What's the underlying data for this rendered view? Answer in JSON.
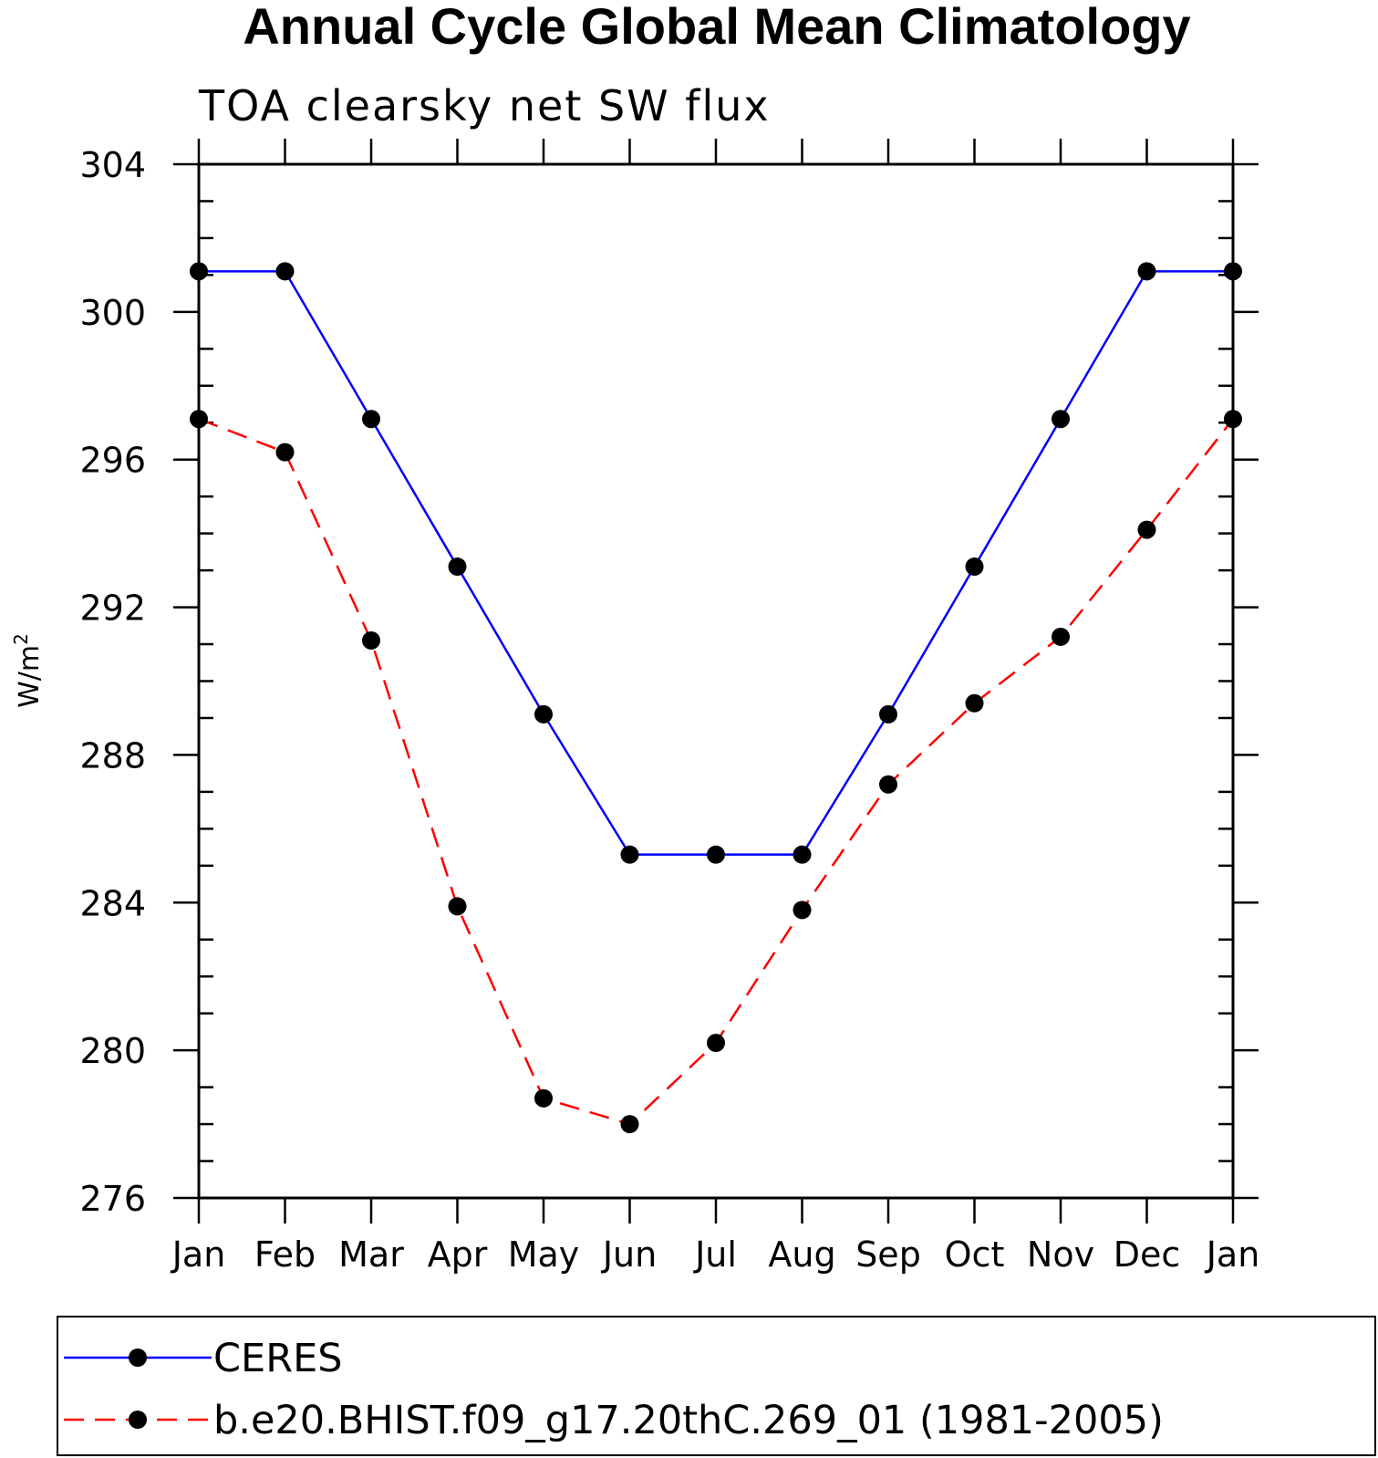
{
  "chart_data": {
    "type": "line",
    "title": "Annual Cycle Global Mean Climatology",
    "subtitle": "TOA clearsky net SW flux",
    "xlabel": "",
    "ylabel": "W/m",
    "ylabel_sup": "2",
    "categories": [
      "Jan",
      "Feb",
      "Mar",
      "Apr",
      "May",
      "Jun",
      "Jul",
      "Aug",
      "Sep",
      "Oct",
      "Nov",
      "Dec",
      "Jan"
    ],
    "ylim": [
      276,
      304
    ],
    "yticks": [
      276,
      280,
      284,
      288,
      292,
      296,
      300,
      304
    ],
    "yminor_step": 1,
    "grid": false,
    "legend_position": "bottom",
    "series": [
      {
        "name": "CERES",
        "color": "#0000ff",
        "dash": "solid",
        "marker": "filled-circle",
        "values": [
          301.1,
          301.1,
          297.1,
          293.1,
          289.1,
          285.3,
          285.3,
          285.3,
          289.1,
          293.1,
          297.1,
          301.1,
          301.1
        ]
      },
      {
        "name": "b.e20.BHIST.f09_g17.20thC.269_01 (1981-2005)",
        "color": "#ff0000",
        "dash": "dashed",
        "marker": "filled-circle",
        "values": [
          297.1,
          296.2,
          291.1,
          283.9,
          278.7,
          278.0,
          280.2,
          283.8,
          287.2,
          289.4,
          291.2,
          294.1,
          297.1
        ]
      }
    ]
  }
}
